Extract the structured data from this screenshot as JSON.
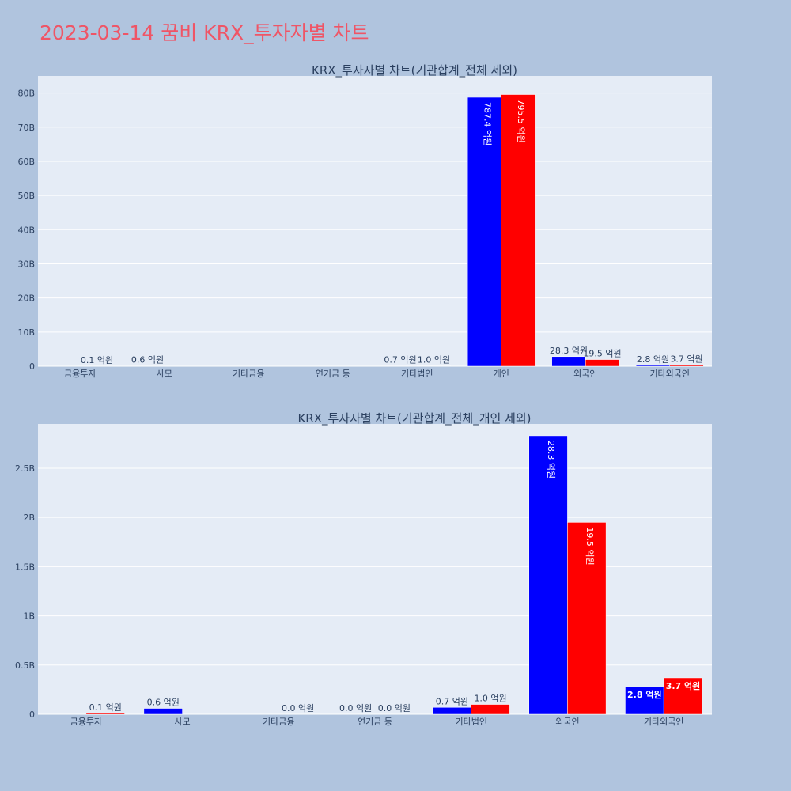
{
  "title": "2023-03-14 꿈비 KRX_투자자별 차트",
  "colors": {
    "page_bg": "#b0c4de",
    "plot_bg": "#e5ecf6",
    "grid": "#ffffff",
    "title": "#ef5566",
    "series_a": "#0000ff",
    "series_b": "#ff0000",
    "text": "#2a3f5f"
  },
  "chart_data": [
    {
      "type": "bar",
      "title": "KRX_투자자별 차트(기관합계_전체 제외)",
      "categories": [
        "금융투자",
        "사모",
        "기타금융",
        "연기금 등",
        "기타법인",
        "개인",
        "외국인",
        "기타외국인"
      ],
      "series": [
        {
          "color": "#0000ff",
          "values": [
            0,
            60000000,
            0,
            0,
            70000000,
            78740000000,
            2830000000,
            280000000
          ],
          "labels": [
            "",
            "0.6 억원",
            "",
            "",
            "0.7 억원",
            "787.4 억원",
            "28.3 억원",
            "2.8 억원"
          ]
        },
        {
          "color": "#ff0000",
          "values": [
            10000000,
            0,
            0,
            0,
            100000000,
            79550000000,
            1950000000,
            370000000
          ],
          "labels": [
            "0.1 억원",
            "",
            "",
            "",
            "1.0 억원",
            "795.5 억원",
            "19.5 억원",
            "3.7 억원"
          ]
        }
      ],
      "ylim": [
        0,
        85000000000
      ],
      "yticks": [
        0,
        10000000000,
        20000000000,
        30000000000,
        40000000000,
        50000000000,
        60000000000,
        70000000000,
        80000000000
      ],
      "ytick_labels": [
        "0",
        "10B",
        "20B",
        "30B",
        "40B",
        "50B",
        "60B",
        "70B",
        "80B"
      ],
      "grid": true
    },
    {
      "type": "bar",
      "title": "KRX_투자자별 차트(기관합계_전체_개인 제외)",
      "categories": [
        "금융투자",
        "사모",
        "기타금융",
        "연기금 등",
        "기타법인",
        "외국인",
        "기타외국인"
      ],
      "series": [
        {
          "color": "#0000ff",
          "values": [
            0,
            60000000,
            0,
            0,
            70000000,
            2830000000,
            280000000
          ],
          "labels": [
            "",
            "0.6 억원",
            "",
            "0.0 억원",
            "0.7 억원",
            "28.3 억원",
            "2.8 억원"
          ]
        },
        {
          "color": "#ff0000",
          "values": [
            10000000,
            0,
            0,
            0,
            100000000,
            1950000000,
            370000000
          ],
          "labels": [
            "0.1 억원",
            "",
            "0.0 억원",
            "0.0 억원",
            "1.0 억원",
            "19.5 억원",
            "3.7 억원"
          ]
        }
      ],
      "ylim": [
        0,
        2950000000
      ],
      "yticks": [
        0,
        500000000,
        1000000000,
        1500000000,
        2000000000,
        2500000000
      ],
      "ytick_labels": [
        "0",
        "0.5B",
        "1B",
        "1.5B",
        "2B",
        "2.5B"
      ],
      "grid": true
    }
  ]
}
